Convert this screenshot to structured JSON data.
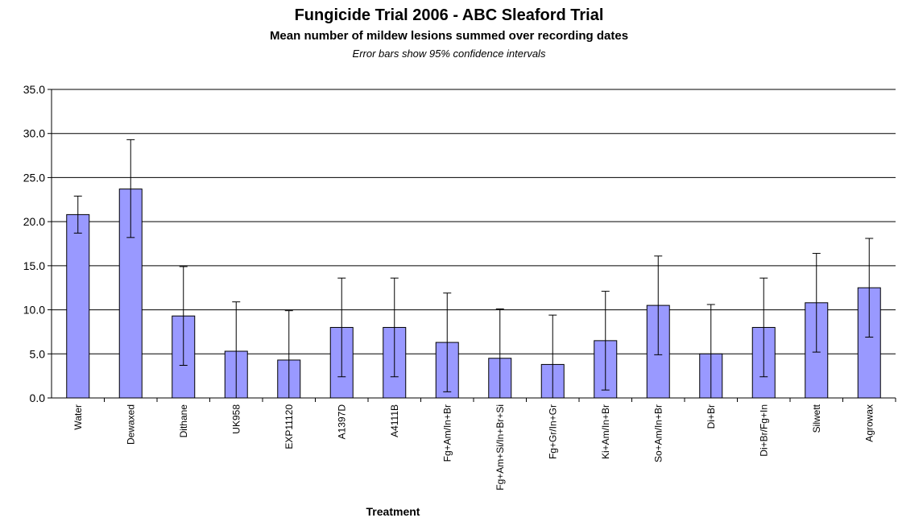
{
  "chart_data": {
    "type": "bar",
    "title": "Fungicide Trial 2006 - ABC Sleaford Trial",
    "subtitle": "Mean number of mildew lesions summed over recording dates",
    "note": "Error bars show 95% confidence intervals",
    "xlabel": "Treatment",
    "ylabel": "",
    "ylim": [
      0,
      35
    ],
    "yticks": [
      "0.0",
      "5.0",
      "10.0",
      "15.0",
      "20.0",
      "25.0",
      "30.0",
      "35.0"
    ],
    "grid": true,
    "legend": "none",
    "categories": [
      "Water",
      "Dewaxed",
      "Dithane",
      "UK958",
      "EXP11120",
      "A1397D",
      "A4111B",
      "Fg+Am/In+Br",
      "Fg+Am+Si/In+Br+Si",
      "Fg+Gr/In+Gr",
      "Ki+Am/In+Br",
      "So+Am/In+Br",
      "Di+Br",
      "Di+Br/Fg+In",
      "Silwett",
      "Agrowax"
    ],
    "values": [
      20.8,
      23.7,
      9.3,
      5.3,
      4.3,
      8.0,
      8.0,
      6.3,
      4.5,
      3.8,
      6.5,
      10.5,
      5.0,
      8.0,
      10.8,
      12.5
    ],
    "error_low": [
      18.7,
      18.2,
      3.7,
      0.0,
      0.0,
      2.4,
      2.4,
      0.7,
      0.0,
      0.0,
      0.9,
      4.9,
      0.0,
      2.4,
      5.2,
      6.9
    ],
    "error_high": [
      22.9,
      29.3,
      14.9,
      10.9,
      9.9,
      13.6,
      13.6,
      11.9,
      10.1,
      9.4,
      12.1,
      16.1,
      10.6,
      13.6,
      16.4,
      18.1
    ],
    "colors": {
      "bar_fill": "#9999ff",
      "bar_stroke": "#000000",
      "grid": "#000000"
    }
  }
}
